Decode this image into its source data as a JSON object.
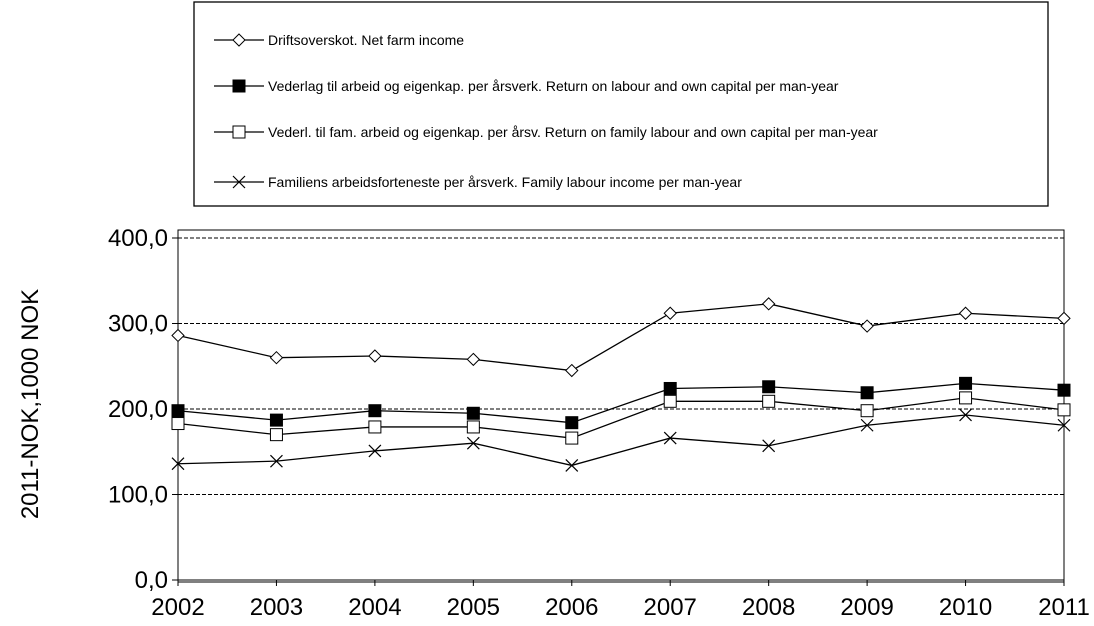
{
  "chart_data": {
    "type": "line",
    "title": "",
    "xlabel": "",
    "ylabel": "2011-NOK,1000 NOK",
    "categories": [
      "2002",
      "2003",
      "2004",
      "2005",
      "2006",
      "2007",
      "2008",
      "2009",
      "2010",
      "2011"
    ],
    "ylim": [
      0,
      400
    ],
    "yticks": [
      0,
      100,
      200,
      300,
      400
    ],
    "ytick_labels": [
      "0,0",
      "100,0",
      "200,0",
      "300,0",
      "400,0"
    ],
    "grid": "horizontal dashed",
    "legend_position": "top",
    "series": [
      {
        "name": "Driftsoverskot. Net farm income",
        "marker": "diamond-open",
        "values": [
          286,
          260,
          262,
          258,
          245,
          312,
          323,
          297,
          312,
          306
        ]
      },
      {
        "name": "Vederlag til arbeid og eigenkap. per årsverk. Return on labour and own capital per man-year",
        "marker": "square-filled",
        "values": [
          198,
          187,
          198,
          195,
          184,
          224,
          226,
          219,
          230,
          222
        ]
      },
      {
        "name": "Vederl. til fam. arbeid og eigenkap. per årsv. Return on family labour and own capital per man-year",
        "marker": "square-open",
        "values": [
          183,
          170,
          179,
          179,
          166,
          209,
          209,
          198,
          213,
          199
        ]
      },
      {
        "name": "Familiens arbeidsforteneste per årsverk. Family labour income per man-year",
        "marker": "x",
        "values": [
          136,
          139,
          151,
          160,
          134,
          166,
          157,
          181,
          193,
          181
        ]
      }
    ]
  }
}
